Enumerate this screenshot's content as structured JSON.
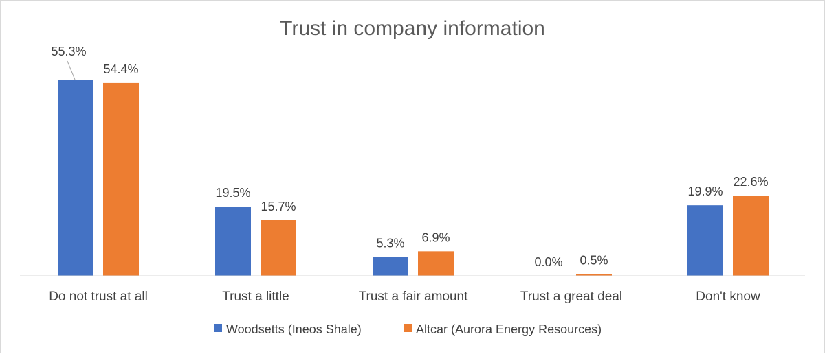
{
  "chart_data": {
    "type": "bar",
    "title": "Trust in company information",
    "categories": [
      "Do not trust at all",
      "Trust a little",
      "Trust a fair amount",
      "Trust a great deal",
      "Don't know"
    ],
    "series": [
      {
        "name": "Woodsetts (Ineos Shale)",
        "color": "#4472C4",
        "values": [
          55.3,
          19.5,
          5.3,
          0.0,
          19.9
        ],
        "labels": [
          "55.3%",
          "19.5%",
          "5.3%",
          "0.0%",
          "19.9%"
        ]
      },
      {
        "name": "Altcar (Aurora Energy Resources)",
        "color": "#ED7D31",
        "values": [
          54.4,
          15.7,
          6.9,
          0.5,
          22.6
        ],
        "labels": [
          "54.4%",
          "15.7%",
          "6.9%",
          "0.5%",
          "22.6%"
        ]
      }
    ],
    "ylim": [
      0,
      60
    ],
    "grid": false,
    "legend": "bottom",
    "value_format": "percent"
  }
}
